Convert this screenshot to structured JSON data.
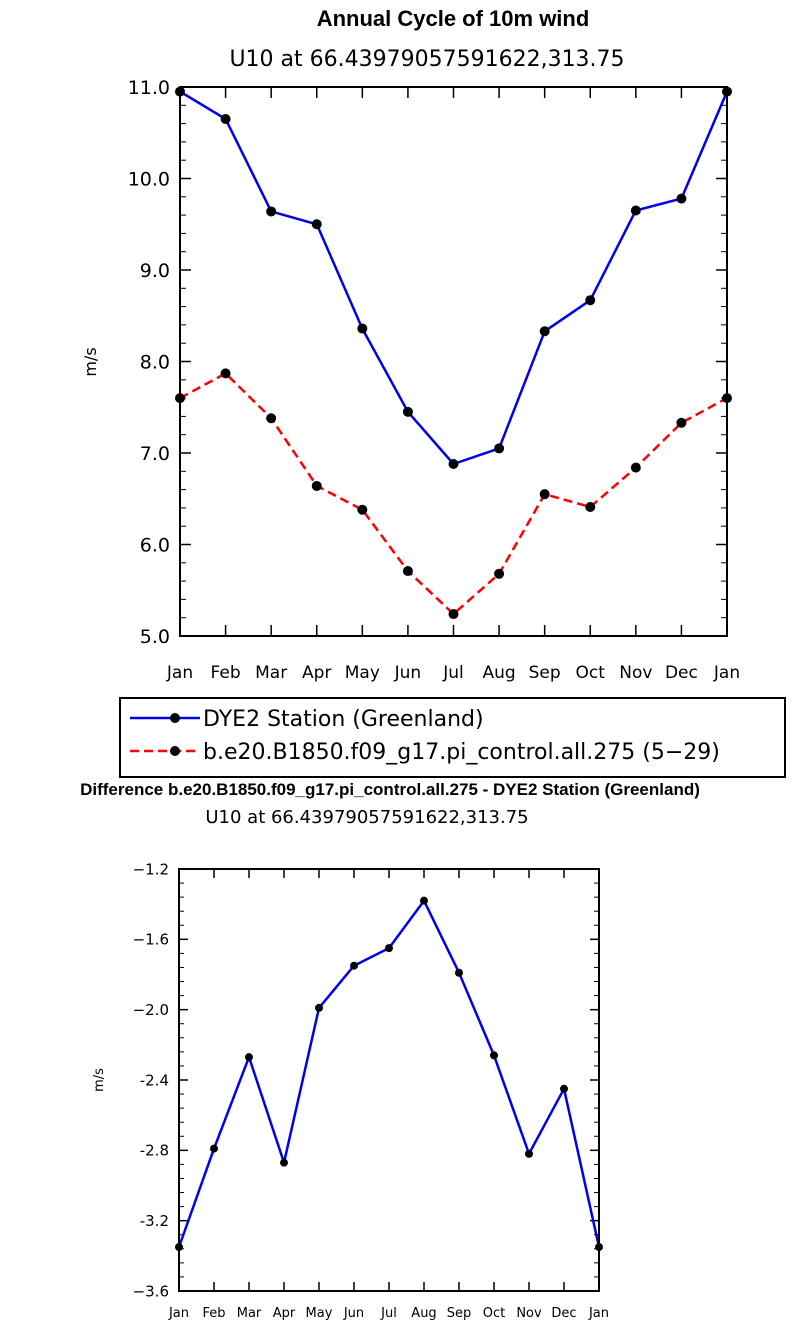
{
  "chart_data": [
    {
      "type": "line",
      "title": "Annual Cycle of 10m wind",
      "subtitle": "U10 at 66.43979057591622,313.75",
      "xlabel": "",
      "ylabel": "m/s",
      "ylim": [
        5.0,
        11.0
      ],
      "y_major_ticks": [
        5.0,
        6.0,
        7.0,
        8.0,
        9.0,
        10.0,
        11.0
      ],
      "y_tick_labels": [
        "5.0",
        "6.0",
        "7.0",
        "8.0",
        "9.0",
        "10.0",
        "11.0"
      ],
      "y_minor_step": 0.2,
      "categories": [
        "Jan",
        "Feb",
        "Mar",
        "Apr",
        "May",
        "Jun",
        "Jul",
        "Aug",
        "Sep",
        "Oct",
        "Nov",
        "Dec",
        "Jan"
      ],
      "series": [
        {
          "name": "DYE2 Station (Greenland)",
          "color": "#0000ee",
          "dash": "solid",
          "values": [
            10.95,
            10.65,
            9.64,
            9.5,
            8.36,
            7.45,
            6.88,
            7.05,
            8.33,
            8.67,
            9.65,
            9.78,
            10.95
          ]
        },
        {
          "name": "b.e20.B1850.f09_g17.pi_control.all.275 (5−29)",
          "color": "#ff0000",
          "dash": "dashed",
          "values": [
            7.6,
            7.87,
            7.38,
            6.64,
            6.38,
            5.71,
            5.24,
            5.68,
            6.55,
            6.41,
            6.84,
            7.33,
            7.6
          ]
        }
      ],
      "legend_position": "below"
    },
    {
      "type": "line",
      "title": "Difference b.e20.B1850.f09_g17.pi_control.all.275 - DYE2 Station (Greenland)",
      "subtitle": "U10 at 66.43979057591622,313.75",
      "xlabel": "",
      "ylabel": "m/s",
      "ylim": [
        -3.6,
        -1.2
      ],
      "y_major_ticks": [
        -3.6,
        -3.2,
        -2.8,
        -2.4,
        -2.0,
        -1.6,
        -1.2
      ],
      "y_tick_labels": [
        "−3.6",
        "-3.2",
        "-2.8",
        "-2.4",
        "−2.0",
        "−1.6",
        "−1.2"
      ],
      "y_minor_step": 0.08,
      "categories": [
        "Jan",
        "Feb",
        "Mar",
        "Apr",
        "May",
        "Jun",
        "Jul",
        "Aug",
        "Sep",
        "Oct",
        "Nov",
        "Dec",
        "Jan"
      ],
      "series": [
        {
          "name": "Difference",
          "color": "#0000ee",
          "dash": "solid",
          "values": [
            -3.35,
            -2.79,
            -2.27,
            -2.87,
            -1.99,
            -1.75,
            -1.65,
            -1.38,
            -1.79,
            -2.26,
            -2.82,
            -2.45,
            -3.35
          ]
        }
      ]
    }
  ]
}
